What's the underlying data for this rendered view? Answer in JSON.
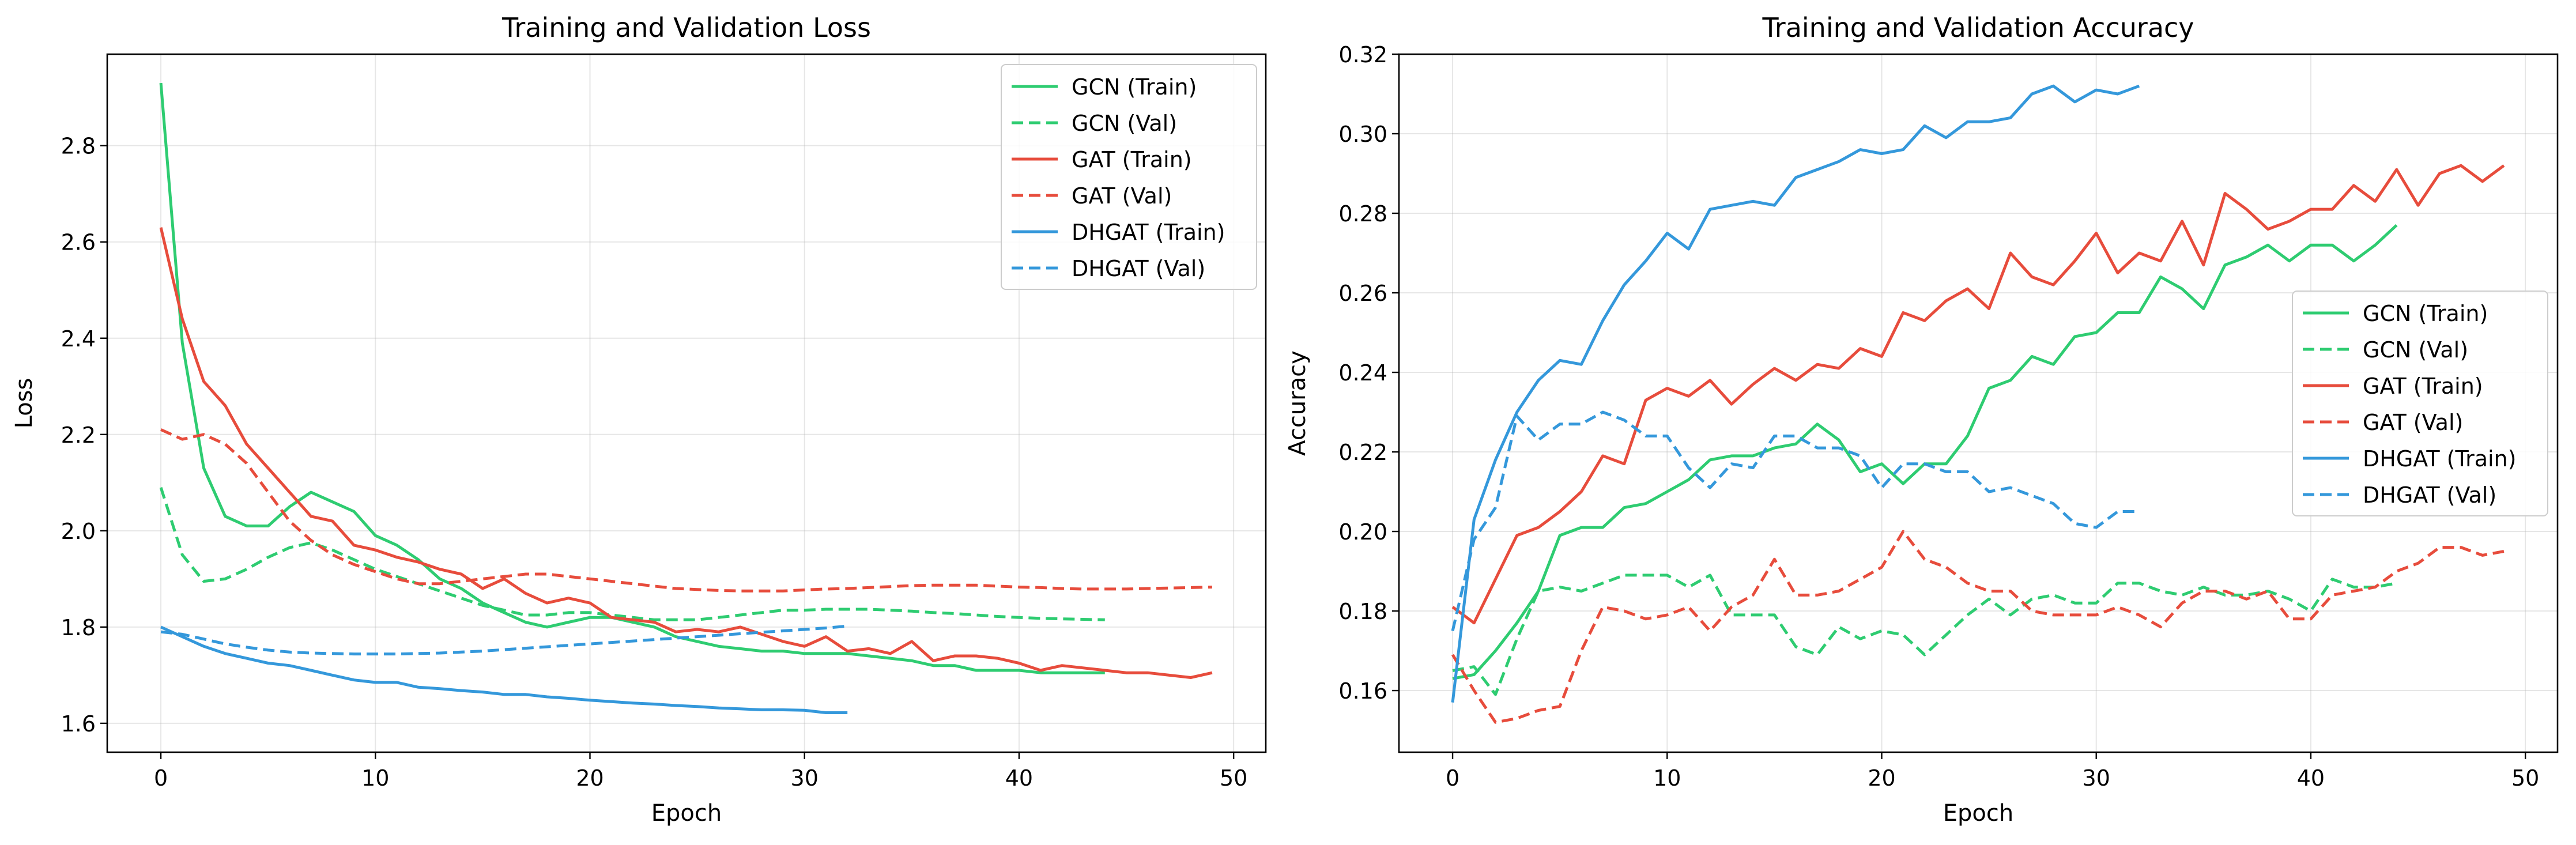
{
  "chart_data": [
    {
      "type": "line",
      "title": "Training and Validation Loss",
      "xlabel": "Epoch",
      "ylabel": "Loss",
      "xlim": [
        -2.5,
        51.5
      ],
      "ylim": [
        1.54,
        2.99
      ],
      "xticks": [
        0,
        10,
        20,
        30,
        40,
        50
      ],
      "yticks": [
        1.6,
        1.8,
        2.0,
        2.2,
        2.4,
        2.6,
        2.8
      ],
      "ytick_labels": [
        "1.6",
        "1.8",
        "2.0",
        "2.2",
        "2.4",
        "2.6",
        "2.8"
      ],
      "grid": true,
      "legend": "top-right",
      "series": [
        {
          "name": "GCN (Train)",
          "color": "#2ecc71",
          "dash": "solid",
          "values": [
            2.93,
            2.39,
            2.13,
            2.03,
            2.01,
            2.01,
            2.05,
            2.08,
            2.06,
            2.04,
            1.99,
            1.97,
            1.94,
            1.9,
            1.88,
            1.85,
            1.83,
            1.81,
            1.8,
            1.81,
            1.82,
            1.82,
            1.81,
            1.8,
            1.78,
            1.77,
            1.76,
            1.755,
            1.75,
            1.75,
            1.745,
            1.745,
            1.745,
            1.74,
            1.735,
            1.73,
            1.72,
            1.72,
            1.71,
            1.71,
            1.71,
            1.705,
            1.705,
            1.705,
            1.705
          ]
        },
        {
          "name": "GCN (Val)",
          "color": "#2ecc71",
          "dash": "dashed",
          "values": [
            2.09,
            1.95,
            1.895,
            1.9,
            1.92,
            1.945,
            1.965,
            1.975,
            1.96,
            1.94,
            1.92,
            1.905,
            1.89,
            1.875,
            1.86,
            1.845,
            1.835,
            1.825,
            1.825,
            1.83,
            1.83,
            1.825,
            1.82,
            1.815,
            1.815,
            1.815,
            1.82,
            1.825,
            1.83,
            1.835,
            1.835,
            1.837,
            1.837,
            1.837,
            1.835,
            1.833,
            1.83,
            1.828,
            1.825,
            1.822,
            1.82,
            1.818,
            1.817,
            1.816,
            1.815
          ]
        },
        {
          "name": "GAT (Train)",
          "color": "#e74c3c",
          "dash": "solid",
          "values": [
            2.63,
            2.44,
            2.31,
            2.26,
            2.18,
            2.13,
            2.08,
            2.03,
            2.02,
            1.97,
            1.96,
            1.945,
            1.935,
            1.92,
            1.91,
            1.88,
            1.9,
            1.87,
            1.85,
            1.86,
            1.85,
            1.82,
            1.815,
            1.81,
            1.79,
            1.795,
            1.79,
            1.8,
            1.785,
            1.77,
            1.76,
            1.78,
            1.75,
            1.755,
            1.745,
            1.77,
            1.73,
            1.74,
            1.74,
            1.735,
            1.725,
            1.71,
            1.72,
            1.715,
            1.71,
            1.705,
            1.705,
            1.7,
            1.695,
            1.705
          ]
        },
        {
          "name": "GAT (Val)",
          "color": "#e74c3c",
          "dash": "dashed",
          "values": [
            2.21,
            2.19,
            2.2,
            2.18,
            2.14,
            2.08,
            2.02,
            1.98,
            1.95,
            1.93,
            1.915,
            1.9,
            1.89,
            1.89,
            1.895,
            1.9,
            1.905,
            1.91,
            1.91,
            1.905,
            1.9,
            1.895,
            1.89,
            1.885,
            1.88,
            1.878,
            1.876,
            1.875,
            1.875,
            1.875,
            1.877,
            1.879,
            1.88,
            1.882,
            1.884,
            1.886,
            1.887,
            1.887,
            1.887,
            1.885,
            1.883,
            1.882,
            1.88,
            1.879,
            1.879,
            1.879,
            1.88,
            1.881,
            1.882,
            1.883
          ]
        },
        {
          "name": "DHGAT (Train)",
          "color": "#3498db",
          "dash": "solid",
          "values": [
            1.8,
            1.78,
            1.76,
            1.745,
            1.735,
            1.725,
            1.72,
            1.71,
            1.7,
            1.69,
            1.685,
            1.685,
            1.675,
            1.672,
            1.668,
            1.665,
            1.66,
            1.66,
            1.655,
            1.652,
            1.648,
            1.645,
            1.642,
            1.64,
            1.637,
            1.635,
            1.632,
            1.63,
            1.628,
            1.628,
            1.627,
            1.622,
            1.622
          ]
        },
        {
          "name": "DHGAT (Val)",
          "color": "#3498db",
          "dash": "dashed",
          "values": [
            1.79,
            1.785,
            1.775,
            1.765,
            1.758,
            1.752,
            1.748,
            1.746,
            1.745,
            1.744,
            1.744,
            1.744,
            1.745,
            1.746,
            1.748,
            1.75,
            1.753,
            1.756,
            1.759,
            1.762,
            1.765,
            1.768,
            1.771,
            1.774,
            1.777,
            1.78,
            1.783,
            1.786,
            1.789,
            1.792,
            1.795,
            1.798,
            1.802
          ]
        }
      ]
    },
    {
      "type": "line",
      "title": "Training and Validation Accuracy",
      "xlabel": "Epoch",
      "ylabel": "Accuracy",
      "xlim": [
        -2.5,
        51.5
      ],
      "ylim": [
        0.1445,
        0.32
      ],
      "xticks": [
        0,
        10,
        20,
        30,
        40,
        50
      ],
      "yticks": [
        0.16,
        0.18,
        0.2,
        0.22,
        0.24,
        0.26,
        0.28,
        0.3,
        0.32
      ],
      "ytick_labels": [
        "0.16",
        "0.18",
        "0.20",
        "0.22",
        "0.24",
        "0.26",
        "0.28",
        "0.30",
        "0.32"
      ],
      "grid": true,
      "legend": "center-right",
      "series": [
        {
          "name": "GCN (Train)",
          "color": "#2ecc71",
          "dash": "solid",
          "values": [
            0.163,
            0.164,
            0.17,
            0.177,
            0.185,
            0.199,
            0.201,
            0.201,
            0.206,
            0.207,
            0.21,
            0.213,
            0.218,
            0.219,
            0.219,
            0.221,
            0.222,
            0.227,
            0.223,
            0.215,
            0.217,
            0.212,
            0.217,
            0.217,
            0.224,
            0.236,
            0.238,
            0.244,
            0.242,
            0.249,
            0.25,
            0.255,
            0.255,
            0.264,
            0.261,
            0.256,
            0.267,
            0.269,
            0.272,
            0.268,
            0.272,
            0.272,
            0.268,
            0.272,
            0.277
          ]
        },
        {
          "name": "GCN (Val)",
          "color": "#2ecc71",
          "dash": "dashed",
          "values": [
            0.165,
            0.166,
            0.159,
            0.173,
            0.185,
            0.186,
            0.185,
            0.187,
            0.189,
            0.189,
            0.189,
            0.186,
            0.189,
            0.179,
            0.179,
            0.179,
            0.171,
            0.169,
            0.176,
            0.173,
            0.175,
            0.174,
            0.169,
            0.174,
            0.179,
            0.183,
            0.179,
            0.183,
            0.184,
            0.182,
            0.182,
            0.187,
            0.187,
            0.185,
            0.184,
            0.186,
            0.184,
            0.184,
            0.185,
            0.183,
            0.18,
            0.188,
            0.186,
            0.186,
            0.187
          ]
        },
        {
          "name": "GAT (Train)",
          "color": "#e74c3c",
          "dash": "solid",
          "values": [
            0.181,
            0.177,
            0.188,
            0.199,
            0.201,
            0.205,
            0.21,
            0.219,
            0.217,
            0.233,
            0.236,
            0.234,
            0.238,
            0.232,
            0.237,
            0.241,
            0.238,
            0.242,
            0.241,
            0.246,
            0.244,
            0.255,
            0.253,
            0.258,
            0.261,
            0.256,
            0.27,
            0.264,
            0.262,
            0.268,
            0.275,
            0.265,
            0.27,
            0.268,
            0.278,
            0.267,
            0.285,
            0.281,
            0.276,
            0.278,
            0.281,
            0.281,
            0.287,
            0.283,
            0.291,
            0.282,
            0.29,
            0.292,
            0.288,
            0.292
          ]
        },
        {
          "name": "GAT (Val)",
          "color": "#e74c3c",
          "dash": "dashed",
          "values": [
            0.169,
            0.16,
            0.152,
            0.153,
            0.155,
            0.156,
            0.17,
            0.181,
            0.18,
            0.178,
            0.179,
            0.181,
            0.175,
            0.181,
            0.184,
            0.193,
            0.184,
            0.184,
            0.185,
            0.188,
            0.191,
            0.2,
            0.193,
            0.191,
            0.187,
            0.185,
            0.185,
            0.18,
            0.179,
            0.179,
            0.179,
            0.181,
            0.179,
            0.176,
            0.182,
            0.185,
            0.185,
            0.183,
            0.185,
            0.178,
            0.178,
            0.184,
            0.185,
            0.186,
            0.19,
            0.192,
            0.196,
            0.196,
            0.194,
            0.195
          ]
        },
        {
          "name": "DHGAT (Train)",
          "color": "#3498db",
          "dash": "solid",
          "values": [
            0.157,
            0.203,
            0.218,
            0.23,
            0.238,
            0.243,
            0.242,
            0.253,
            0.262,
            0.268,
            0.275,
            0.271,
            0.281,
            0.282,
            0.283,
            0.282,
            0.289,
            0.291,
            0.293,
            0.296,
            0.295,
            0.296,
            0.302,
            0.299,
            0.303,
            0.303,
            0.304,
            0.31,
            0.312,
            0.308,
            0.311,
            0.31,
            0.312
          ]
        },
        {
          "name": "DHGAT (Val)",
          "color": "#3498db",
          "dash": "dashed",
          "values": [
            0.175,
            0.198,
            0.206,
            0.229,
            0.223,
            0.227,
            0.227,
            0.23,
            0.228,
            0.224,
            0.224,
            0.216,
            0.211,
            0.217,
            0.216,
            0.224,
            0.224,
            0.221,
            0.221,
            0.219,
            0.211,
            0.217,
            0.217,
            0.215,
            0.215,
            0.21,
            0.211,
            0.209,
            0.207,
            0.202,
            0.201,
            0.205,
            0.205
          ]
        }
      ]
    }
  ]
}
